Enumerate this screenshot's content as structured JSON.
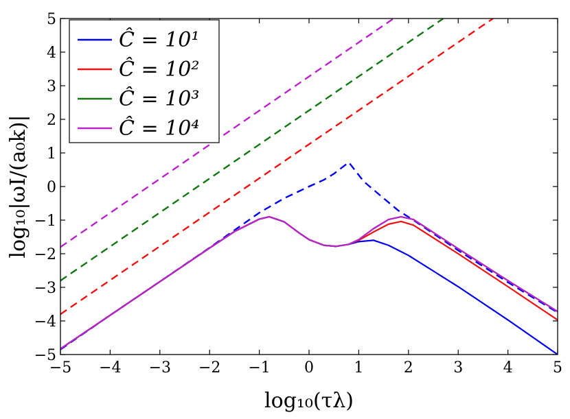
{
  "chart_data": {
    "type": "line",
    "title": "",
    "xlabel": "log₁₀(τλ)",
    "ylabel": "log₁₀|ωI/(a₀k)|",
    "xlim": [
      -5,
      5
    ],
    "ylim": [
      -5,
      5
    ],
    "x_ticks": [
      -5,
      -4,
      -3,
      -2,
      -1,
      0,
      1,
      2,
      3,
      4,
      5
    ],
    "y_ticks": [
      -5,
      -4,
      -3,
      -2,
      -1,
      0,
      1,
      2,
      3,
      4,
      5
    ],
    "x_tick_labels": [
      "−5",
      "−4",
      "−3",
      "−2",
      "−1",
      "0",
      "1",
      "2",
      "3",
      "4",
      "5"
    ],
    "y_tick_labels": [
      "−5",
      "−4",
      "−3",
      "−2",
      "−1",
      "0",
      "1",
      "2",
      "3",
      "4",
      "5"
    ],
    "grid": false,
    "legend_position": "top-left",
    "legend": [
      "Ĉ = 10¹",
      "Ĉ = 10²",
      "Ĉ = 10³",
      "Ĉ = 10⁴"
    ],
    "series": [
      {
        "name": "Ĉ = 10¹ (dashed)",
        "color": "#0000ee",
        "style": "dashed",
        "x": [
          -5,
          -4,
          -3,
          -2,
          -1.5,
          -1,
          -0.5,
          0,
          0.3,
          0.5,
          0.8,
          1.1,
          1.5,
          1.8,
          2.1,
          3,
          4,
          5
        ],
        "y": [
          -4.85,
          -3.83,
          -2.83,
          -1.82,
          -1.3,
          -0.78,
          -0.35,
          0.0,
          0.2,
          0.38,
          0.72,
          0.15,
          -0.35,
          -0.72,
          -1.0,
          -1.9,
          -2.85,
          -3.75
        ]
      },
      {
        "name": "Ĉ = 10² (dashed)",
        "color": "#ee1111",
        "style": "dashed",
        "x": [
          -5,
          3.7
        ],
        "y": [
          -3.8,
          5.0
        ]
      },
      {
        "name": "Ĉ = 10³ (dashed)",
        "color": "#117711",
        "style": "dashed",
        "x": [
          -5,
          2.7
        ],
        "y": [
          -2.8,
          5.0
        ]
      },
      {
        "name": "Ĉ = 10⁴ (dashed)",
        "color": "#bb22cc",
        "style": "dashed",
        "x": [
          -5,
          1.7
        ],
        "y": [
          -1.8,
          5.0
        ]
      },
      {
        "name": "Ĉ = 10¹",
        "color": "#0000ee",
        "style": "solid",
        "x": [
          -5,
          -4,
          -3,
          -2,
          -1.5,
          -1,
          -0.8,
          -0.5,
          -0.2,
          0,
          0.3,
          0.55,
          0.8,
          1.0,
          1.3,
          1.6,
          2,
          3,
          4,
          5
        ],
        "y": [
          -4.83,
          -3.83,
          -2.83,
          -1.83,
          -1.34,
          -0.97,
          -0.9,
          -1.05,
          -1.38,
          -1.58,
          -1.75,
          -1.78,
          -1.72,
          -1.64,
          -1.6,
          -1.75,
          -2.05,
          -2.98,
          -3.97,
          -5.0
        ]
      },
      {
        "name": "Ĉ = 10²",
        "color": "#ee1111",
        "style": "solid",
        "x": [
          -5,
          -4,
          -3,
          -2,
          -1.5,
          -1,
          -0.8,
          -0.5,
          -0.2,
          0,
          0.3,
          0.55,
          0.8,
          1.0,
          1.3,
          1.6,
          1.85,
          2.1,
          3,
          4,
          5
        ],
        "y": [
          -4.83,
          -3.83,
          -2.83,
          -1.83,
          -1.34,
          -0.97,
          -0.9,
          -1.05,
          -1.38,
          -1.58,
          -1.75,
          -1.78,
          -1.72,
          -1.6,
          -1.35,
          -1.12,
          -1.04,
          -1.15,
          -2.0,
          -2.98,
          -3.97
        ]
      },
      {
        "name": "Ĉ = 10³",
        "color": "#117711",
        "style": "solid",
        "x": [
          -5,
          -4,
          -3,
          -2,
          -1.5,
          -1,
          -0.8,
          -0.5,
          -0.2,
          0,
          0.3,
          0.55,
          0.8,
          1.0,
          1.3,
          1.6,
          1.85,
          2.1,
          3,
          4,
          5
        ],
        "y": [
          -4.83,
          -3.83,
          -2.83,
          -1.83,
          -1.34,
          -0.97,
          -0.9,
          -1.05,
          -1.38,
          -1.58,
          -1.75,
          -1.78,
          -1.72,
          -1.58,
          -1.25,
          -0.98,
          -0.9,
          -0.98,
          -1.85,
          -2.8,
          -3.72
        ]
      },
      {
        "name": "Ĉ = 10⁴",
        "color": "#bb22cc",
        "style": "solid",
        "x": [
          -5,
          -4,
          -3,
          -2,
          -1.5,
          -1,
          -0.8,
          -0.5,
          -0.2,
          0,
          0.3,
          0.55,
          0.8,
          1.0,
          1.3,
          1.6,
          1.85,
          2.1,
          3,
          4,
          5
        ],
        "y": [
          -4.83,
          -3.83,
          -2.83,
          -1.83,
          -1.34,
          -0.97,
          -0.9,
          -1.05,
          -1.38,
          -1.58,
          -1.75,
          -1.78,
          -1.72,
          -1.58,
          -1.25,
          -0.98,
          -0.9,
          -0.98,
          -1.85,
          -2.8,
          -3.72
        ]
      }
    ],
    "legend_colors": [
      "#0000ee",
      "#ee1111",
      "#117711",
      "#bb22cc"
    ]
  }
}
